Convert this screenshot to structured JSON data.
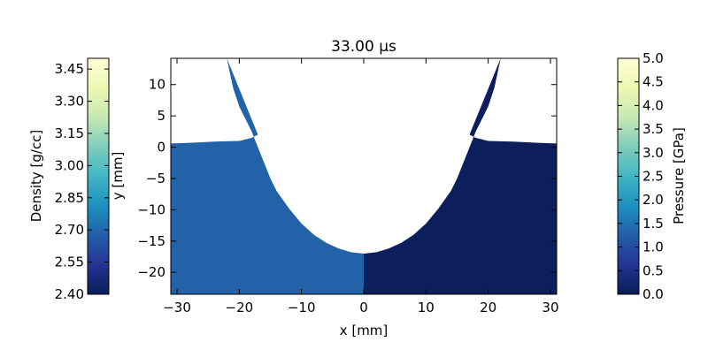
{
  "chart_data": {
    "type": "heatmap",
    "title": "33.00 μs",
    "plot": {
      "xlabel": "x [mm]",
      "ylabel": "y [mm]",
      "xlim": [
        -31,
        31
      ],
      "ylim": [
        -23.5,
        14.2
      ],
      "xticks": [
        -30,
        -20,
        -10,
        0,
        10,
        20,
        30
      ],
      "yticks": [
        -20,
        -15,
        -10,
        -5,
        0,
        5,
        10
      ],
      "boundary": {
        "description_free_data": true,
        "top_y_at_x": [
          [
            0,
            -17.0
          ],
          [
            2,
            -16.8
          ],
          [
            4,
            -16.2
          ],
          [
            6,
            -15.3
          ],
          [
            8,
            -14.0
          ],
          [
            10,
            -12.2
          ],
          [
            12,
            -9.8
          ],
          [
            14,
            -7.0
          ],
          [
            15,
            -5.0
          ],
          [
            16,
            -2.5
          ],
          [
            17,
            0.0
          ],
          [
            18,
            2.5
          ],
          [
            19,
            4.5
          ],
          [
            20,
            6.5
          ],
          [
            21,
            9.5
          ],
          [
            22,
            14.2
          ]
        ],
        "shelf_y_at_x": [
          [
            17,
            2.0
          ],
          [
            18,
            1.5
          ],
          [
            20,
            1.0
          ],
          [
            24,
            0.9
          ],
          [
            28,
            0.7
          ],
          [
            31,
            0.6
          ]
        ]
      },
      "left_half": {
        "quantity": "Density [g/cc]",
        "value": 2.62,
        "color": "#2262a8"
      },
      "right_half": {
        "quantity": "Pressure [GPa]",
        "value": 0.1,
        "color": "#0c1e5b"
      }
    },
    "colorbars": [
      {
        "label": "Density [g/cc]",
        "min": 2.4,
        "max": 3.5,
        "ticks": [
          "2.40",
          "2.55",
          "2.70",
          "2.85",
          "3.00",
          "3.15",
          "3.30",
          "3.45"
        ],
        "tick_values": [
          2.4,
          2.55,
          2.7,
          2.85,
          3.0,
          3.15,
          3.3,
          3.45
        ],
        "colormap": "YlGnBu_r"
      },
      {
        "label": "Pressure [GPa]",
        "min": 0.0,
        "max": 5.0,
        "ticks": [
          "0.0",
          "0.5",
          "1.0",
          "1.5",
          "2.0",
          "2.5",
          "3.0",
          "3.5",
          "4.0",
          "4.5",
          "5.0"
        ],
        "tick_values": [
          0.0,
          0.5,
          1.0,
          1.5,
          2.0,
          2.5,
          3.0,
          3.5,
          4.0,
          4.5,
          5.0
        ],
        "colormap": "YlGnBu_r"
      }
    ],
    "colormap_stops": [
      "#081d58",
      "#253494",
      "#225ea8",
      "#1d91c0",
      "#41b6c4",
      "#7fcdbb",
      "#c7e9b4",
      "#edf8b1",
      "#ffffd9"
    ]
  }
}
